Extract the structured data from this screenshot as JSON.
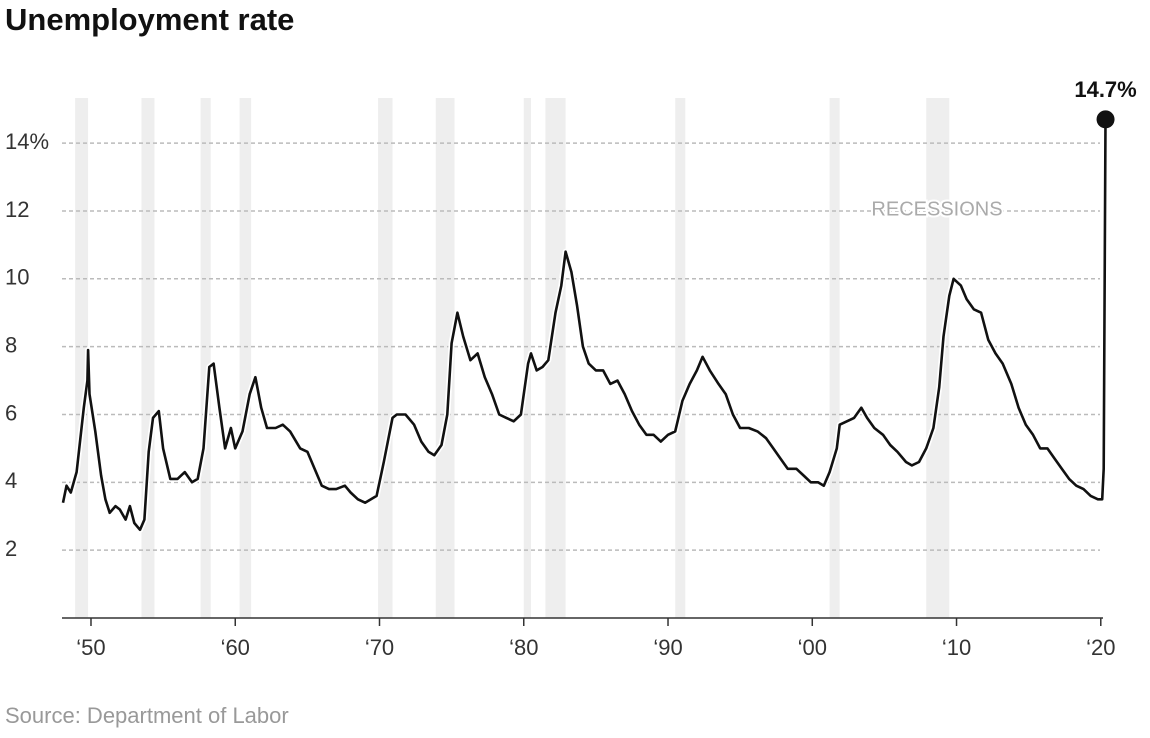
{
  "chart_data": {
    "type": "line",
    "title": "Unemployment rate",
    "source": "Source: Department of Labor",
    "annotation": "14.7%",
    "recessions_label": "RECESSIONS",
    "color": "#111111",
    "recession_color": "#eeeeee",
    "grid": true,
    "xlim": [
      1948.06,
      2020.5
    ],
    "ylim": [
      0,
      15.33
    ],
    "yticks": [
      2,
      4,
      6,
      8,
      10,
      12,
      {
        "value": 14,
        "label": "14%"
      }
    ],
    "xticks": [
      {
        "value": 1950,
        "label": "‘50"
      },
      {
        "value": 1960,
        "label": "‘60"
      },
      {
        "value": 1970,
        "label": "‘70"
      },
      {
        "value": 1980,
        "label": "‘80"
      },
      {
        "value": 1990,
        "label": "‘90"
      },
      {
        "value": 2000,
        "label": "‘00"
      },
      {
        "value": 2010,
        "label": "‘10"
      },
      {
        "value": 2020,
        "label": "‘20"
      }
    ],
    "recessions": [
      [
        1948.9,
        1949.8
      ],
      [
        1953.5,
        1954.4
      ],
      [
        1957.6,
        1958.3
      ],
      [
        1960.3,
        1961.1
      ],
      [
        1969.9,
        1970.9
      ],
      [
        1973.9,
        1975.2
      ],
      [
        1980.0,
        1980.5
      ],
      [
        1981.5,
        1982.9
      ],
      [
        1990.5,
        1991.2
      ],
      [
        2001.2,
        2001.9
      ],
      [
        2007.9,
        2009.5
      ]
    ],
    "x": [
      1948.06,
      1948.3,
      1948.6,
      1949.0,
      1949.5,
      1949.75,
      1949.8,
      1949.9,
      1950.3,
      1950.7,
      1951.0,
      1951.3,
      1951.7,
      1952.0,
      1952.4,
      1952.7,
      1953.0,
      1953.4,
      1953.7,
      1954.0,
      1954.3,
      1954.7,
      1955.0,
      1955.5,
      1956.0,
      1956.5,
      1957.0,
      1957.4,
      1957.8,
      1958.2,
      1958.5,
      1958.9,
      1959.3,
      1959.7,
      1960.0,
      1960.5,
      1961.0,
      1961.4,
      1961.8,
      1962.2,
      1962.8,
      1963.3,
      1963.8,
      1964.5,
      1965.0,
      1965.5,
      1966.0,
      1966.5,
      1967.0,
      1967.6,
      1968.0,
      1968.5,
      1969.0,
      1969.8,
      1970.3,
      1970.9,
      1971.2,
      1971.8,
      1972.4,
      1972.9,
      1973.4,
      1973.8,
      1974.3,
      1974.7,
      1975.0,
      1975.4,
      1975.8,
      1976.3,
      1976.8,
      1977.3,
      1977.8,
      1978.3,
      1978.8,
      1979.3,
      1979.8,
      1980.3,
      1980.5,
      1980.9,
      1981.3,
      1981.7,
      1982.2,
      1982.6,
      1982.9,
      1983.3,
      1983.7,
      1984.1,
      1984.5,
      1985.0,
      1985.5,
      1986.0,
      1986.5,
      1987.0,
      1987.5,
      1988.0,
      1988.5,
      1989.0,
      1989.5,
      1990.0,
      1990.5,
      1991.0,
      1991.5,
      1992.0,
      1992.4,
      1992.9,
      1993.5,
      1994.0,
      1994.5,
      1995.0,
      1995.6,
      1996.2,
      1996.8,
      1997.3,
      1997.8,
      1998.3,
      1998.9,
      1999.4,
      1999.9,
      2000.4,
      2000.8,
      2001.2,
      2001.7,
      2001.9,
      2002.4,
      2002.9,
      2003.4,
      2003.8,
      2004.3,
      2004.9,
      2005.4,
      2005.9,
      2006.5,
      2006.9,
      2007.4,
      2007.9,
      2008.4,
      2008.8,
      2009.1,
      2009.5,
      2009.8,
      2010.3,
      2010.7,
      2011.2,
      2011.7,
      2012.2,
      2012.7,
      2013.2,
      2013.8,
      2014.3,
      2014.8,
      2015.3,
      2015.8,
      2016.3,
      2016.8,
      2017.3,
      2017.8,
      2018.3,
      2018.8,
      2019.3,
      2019.8,
      2020.1,
      2020.2,
      2020.33
    ],
    "values": [
      3.4,
      3.9,
      3.7,
      4.3,
      6.2,
      7.0,
      7.9,
      6.6,
      5.5,
      4.2,
      3.5,
      3.1,
      3.3,
      3.2,
      2.9,
      3.3,
      2.8,
      2.6,
      2.9,
      4.9,
      5.9,
      6.1,
      5.0,
      4.1,
      4.1,
      4.3,
      4.0,
      4.1,
      5.0,
      7.4,
      7.5,
      6.2,
      5.0,
      5.6,
      5.0,
      5.5,
      6.6,
      7.1,
      6.2,
      5.6,
      5.6,
      5.7,
      5.5,
      5.0,
      4.9,
      4.4,
      3.9,
      3.8,
      3.8,
      3.9,
      3.7,
      3.5,
      3.4,
      3.6,
      4.6,
      5.9,
      6.0,
      6.0,
      5.7,
      5.2,
      4.9,
      4.8,
      5.1,
      6.0,
      8.1,
      9.0,
      8.3,
      7.6,
      7.8,
      7.1,
      6.6,
      6.0,
      5.9,
      5.8,
      6.0,
      7.5,
      7.8,
      7.3,
      7.4,
      7.6,
      9.0,
      9.8,
      10.8,
      10.2,
      9.2,
      8.0,
      7.5,
      7.3,
      7.3,
      6.9,
      7.0,
      6.6,
      6.1,
      5.7,
      5.4,
      5.4,
      5.2,
      5.4,
      5.5,
      6.4,
      6.9,
      7.3,
      7.7,
      7.3,
      6.9,
      6.6,
      6.0,
      5.6,
      5.6,
      5.5,
      5.3,
      5.0,
      4.7,
      4.4,
      4.4,
      4.2,
      4.0,
      4.0,
      3.9,
      4.3,
      5.0,
      5.7,
      5.8,
      5.9,
      6.2,
      5.9,
      5.6,
      5.4,
      5.1,
      4.9,
      4.6,
      4.5,
      4.6,
      5.0,
      5.6,
      6.8,
      8.3,
      9.5,
      10.0,
      9.8,
      9.4,
      9.1,
      9.0,
      8.2,
      7.8,
      7.5,
      6.9,
      6.2,
      5.7,
      5.4,
      5.0,
      5.0,
      4.7,
      4.4,
      4.1,
      3.9,
      3.8,
      3.6,
      3.5,
      3.5,
      4.4,
      14.7
    ]
  }
}
